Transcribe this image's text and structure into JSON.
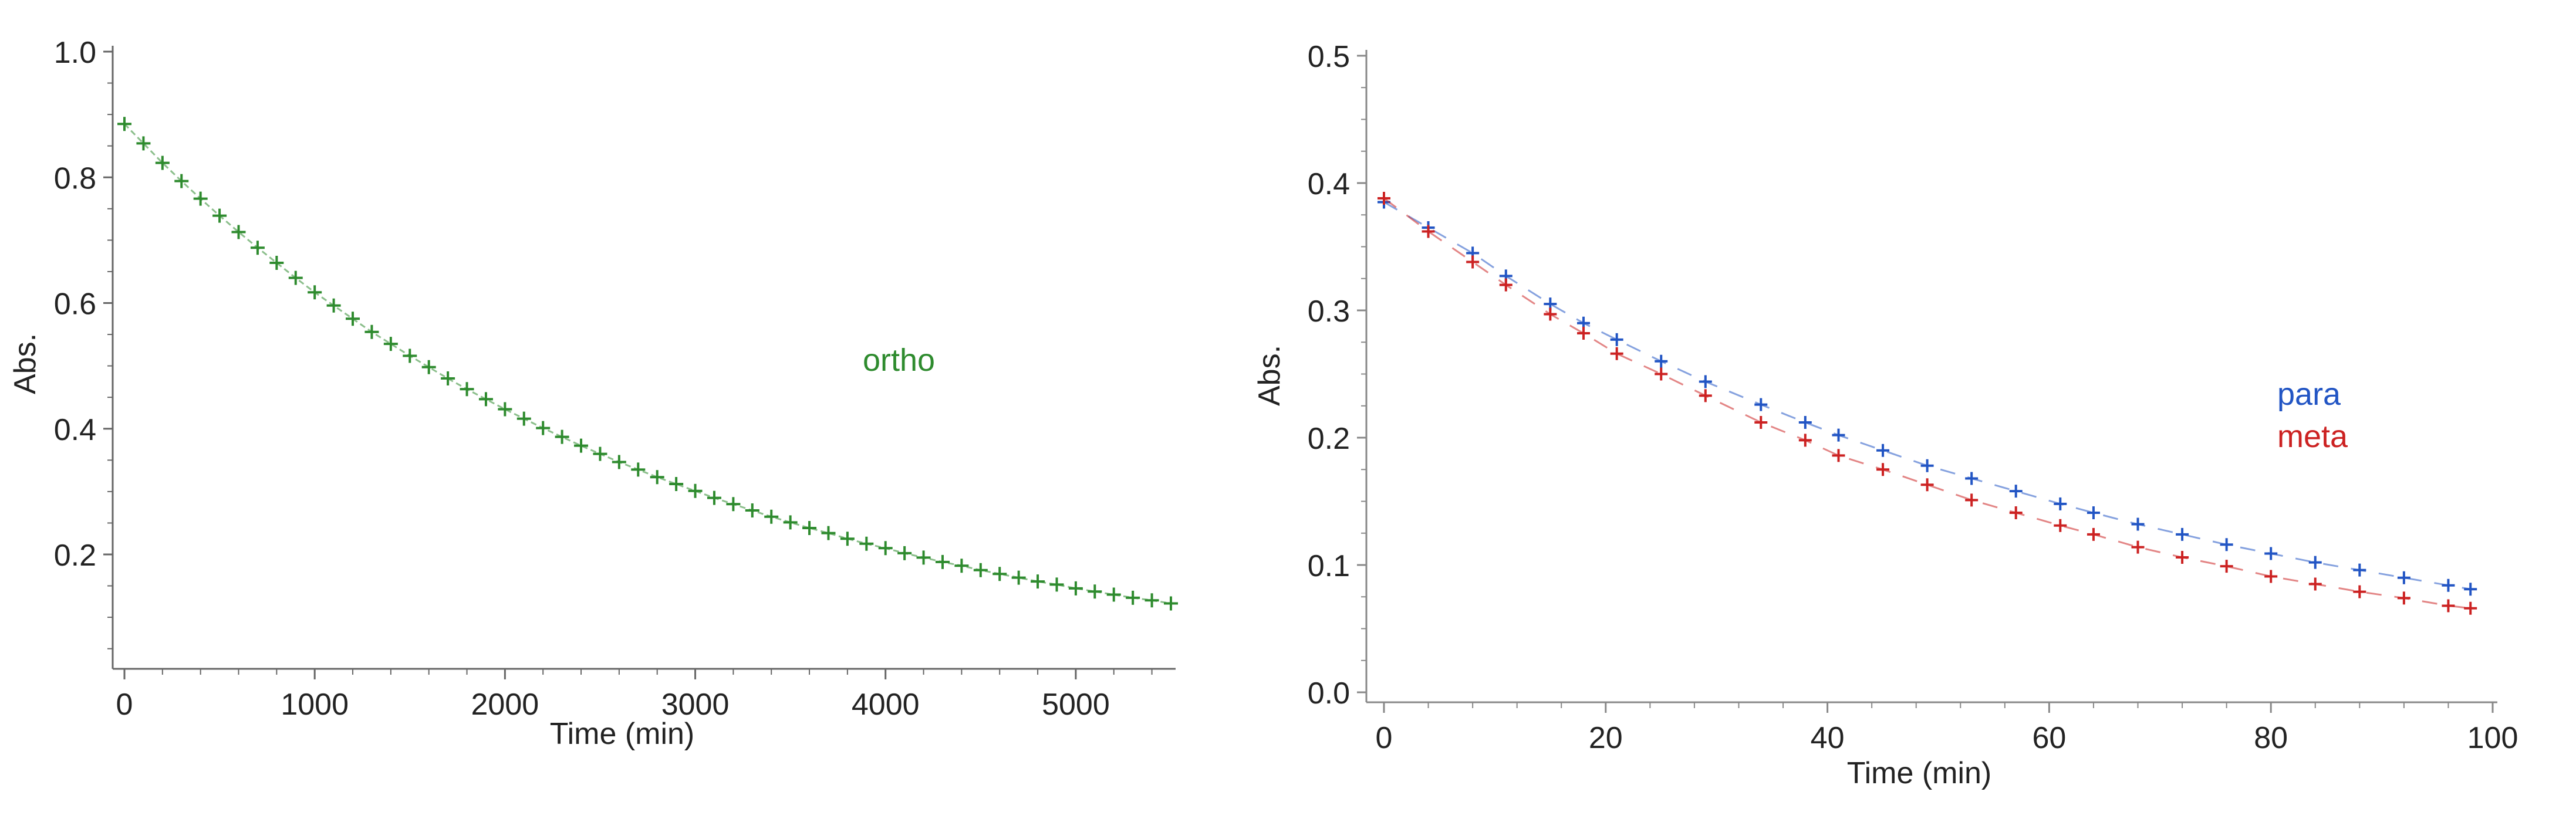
{
  "chart_data": [
    {
      "type": "scatter",
      "xlabel": "Time (min)",
      "ylabel": "Abs.",
      "xlim": [
        -50,
        5500
      ],
      "ylim": [
        0.07,
        1.0
      ],
      "xticks": [
        0,
        1000,
        2000,
        3000,
        4000,
        5000
      ],
      "yticks": [
        0.2,
        0.4,
        0.6,
        0.8,
        1.0
      ],
      "ytick_labels": [
        "0.2",
        "0.4",
        "0.6",
        "0.8",
        "1.0"
      ],
      "grid": false,
      "series": [
        {
          "name": "ortho",
          "color": "#2e8b2e",
          "marker": "plus",
          "x": [
            0,
            100,
            200,
            300,
            400,
            500,
            600,
            700,
            800,
            900,
            1000,
            1100,
            1200,
            1300,
            1400,
            1500,
            1600,
            1700,
            1800,
            1900,
            2000,
            2100,
            2200,
            2300,
            2400,
            2500,
            2600,
            2700,
            2800,
            2900,
            3000,
            3100,
            3200,
            3300,
            3400,
            3500,
            3600,
            3700,
            3800,
            3900,
            4000,
            4100,
            4200,
            4300,
            4400,
            4500,
            4600,
            4700,
            4800,
            4900,
            5000,
            5100,
            5200,
            5300,
            5400,
            5500
          ],
          "y": [
            0.885,
            0.854,
            0.823,
            0.794,
            0.766,
            0.739,
            0.713,
            0.688,
            0.664,
            0.64,
            0.617,
            0.596,
            0.575,
            0.554,
            0.535,
            0.516,
            0.498,
            0.48,
            0.463,
            0.447,
            0.431,
            0.416,
            0.401,
            0.387,
            0.373,
            0.36,
            0.347,
            0.335,
            0.323,
            0.312,
            0.301,
            0.29,
            0.28,
            0.27,
            0.26,
            0.251,
            0.242,
            0.234,
            0.225,
            0.217,
            0.21,
            0.202,
            0.195,
            0.188,
            0.182,
            0.175,
            0.169,
            0.163,
            0.157,
            0.152,
            0.146,
            0.141,
            0.136,
            0.131,
            0.127,
            0.122
          ]
        }
      ],
      "annotations": [
        {
          "text": "ortho",
          "color": "#2e8b2e"
        }
      ]
    },
    {
      "type": "scatter",
      "xlabel": "Time (min)",
      "ylabel": "Abs.",
      "xlim": [
        0,
        100
      ],
      "ylim": [
        0.0,
        0.5
      ],
      "xticks": [
        0,
        20,
        40,
        60,
        80,
        100
      ],
      "yticks": [
        0.0,
        0.1,
        0.2,
        0.3,
        0.4,
        0.5
      ],
      "ytick_labels": [
        "0.0",
        "0.1",
        "0.2",
        "0.3",
        "0.4",
        "0.5"
      ],
      "grid": false,
      "series": [
        {
          "name": "para",
          "color": "#2255c4",
          "marker": "plus",
          "x": [
            0,
            4,
            8,
            11,
            15,
            18,
            21,
            25,
            29,
            34,
            38,
            41,
            45,
            49,
            53,
            57,
            61,
            64,
            68,
            72,
            76,
            80,
            84,
            88,
            92,
            96,
            98
          ],
          "y": [
            0.385,
            0.365,
            0.345,
            0.327,
            0.305,
            0.29,
            0.277,
            0.26,
            0.244,
            0.226,
            0.212,
            0.202,
            0.19,
            0.178,
            0.168,
            0.158,
            0.148,
            0.141,
            0.132,
            0.124,
            0.116,
            0.109,
            0.102,
            0.096,
            0.09,
            0.084,
            0.081
          ]
        },
        {
          "name": "meta",
          "color": "#cc2222",
          "marker": "plus",
          "x": [
            0,
            4,
            8,
            11,
            15,
            18,
            21,
            25,
            29,
            34,
            38,
            41,
            45,
            49,
            53,
            57,
            61,
            64,
            68,
            72,
            76,
            80,
            84,
            88,
            92,
            96,
            98
          ],
          "y": [
            0.388,
            0.362,
            0.338,
            0.32,
            0.297,
            0.282,
            0.266,
            0.25,
            0.233,
            0.212,
            0.198,
            0.186,
            0.175,
            0.163,
            0.151,
            0.141,
            0.131,
            0.124,
            0.114,
            0.106,
            0.099,
            0.091,
            0.085,
            0.079,
            0.074,
            0.068,
            0.066
          ]
        }
      ],
      "annotations": [
        {
          "text": "para",
          "color": "#2255c4"
        },
        {
          "text": "meta",
          "color": "#cc2222"
        }
      ]
    }
  ]
}
